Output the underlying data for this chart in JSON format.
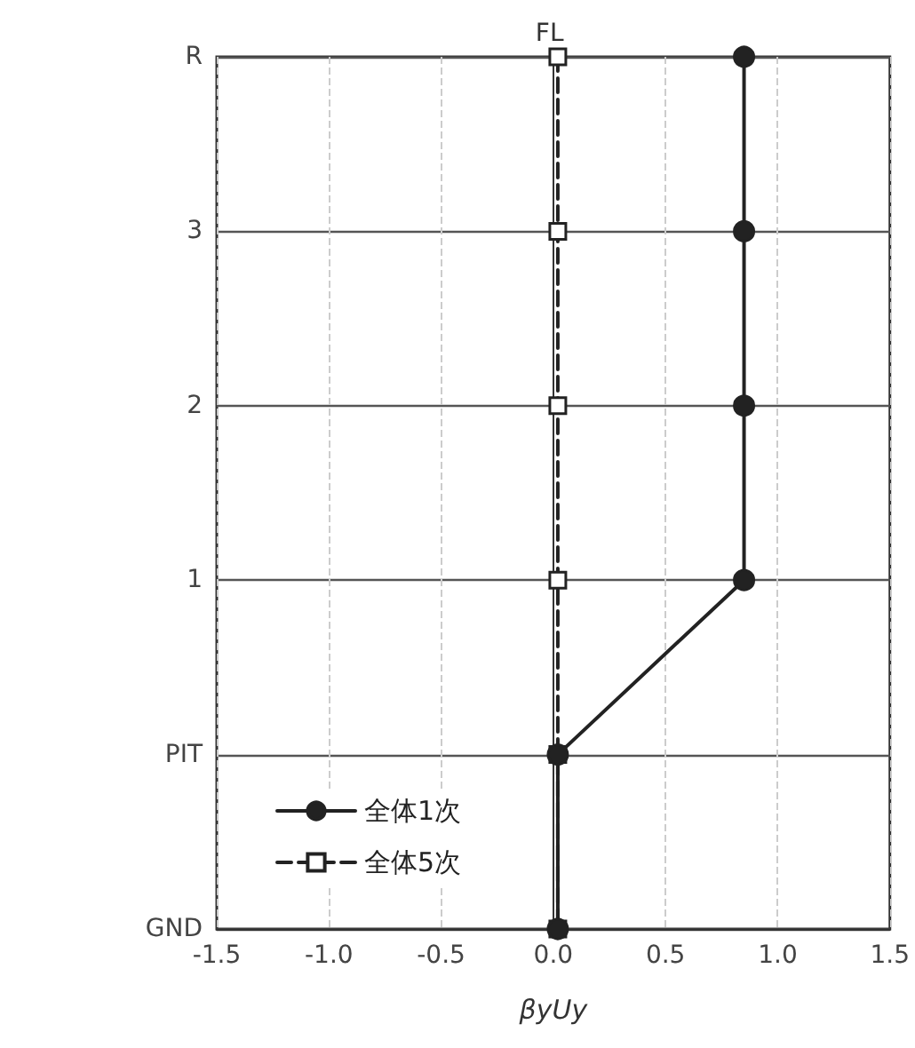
{
  "chart_data": {
    "type": "line",
    "orientation": "horizontal",
    "xlabel": "βyUy",
    "ylabel": "FL",
    "categories": [
      "R",
      "3",
      "2",
      "1",
      "PIT",
      "GND"
    ],
    "xlim": [
      -1.5,
      1.5
    ],
    "xticks": [
      {
        "value": -1.5,
        "label": "-1.5"
      },
      {
        "value": -1.0,
        "label": "-1.0"
      },
      {
        "value": -0.5,
        "label": "-0.5"
      },
      {
        "value": 0.0,
        "label": "0.0"
      },
      {
        "value": 0.5,
        "label": "0.5"
      },
      {
        "value": 1.0,
        "label": "1.0"
      },
      {
        "value": 1.5,
        "label": "1.5"
      }
    ],
    "grid": true,
    "legend": "bottom left",
    "series": [
      {
        "name": "全体1次",
        "color": "#222222",
        "marker": "circle",
        "line_style": "solid",
        "values": [
          0.85,
          0.85,
          0.85,
          0.85,
          0.02,
          0.02
        ]
      },
      {
        "name": "全体5次",
        "color": "#222222",
        "marker": "square",
        "line_style": "dashed",
        "values": [
          0.02,
          0.02,
          0.02,
          0.02,
          0.02,
          0.02
        ]
      }
    ]
  }
}
